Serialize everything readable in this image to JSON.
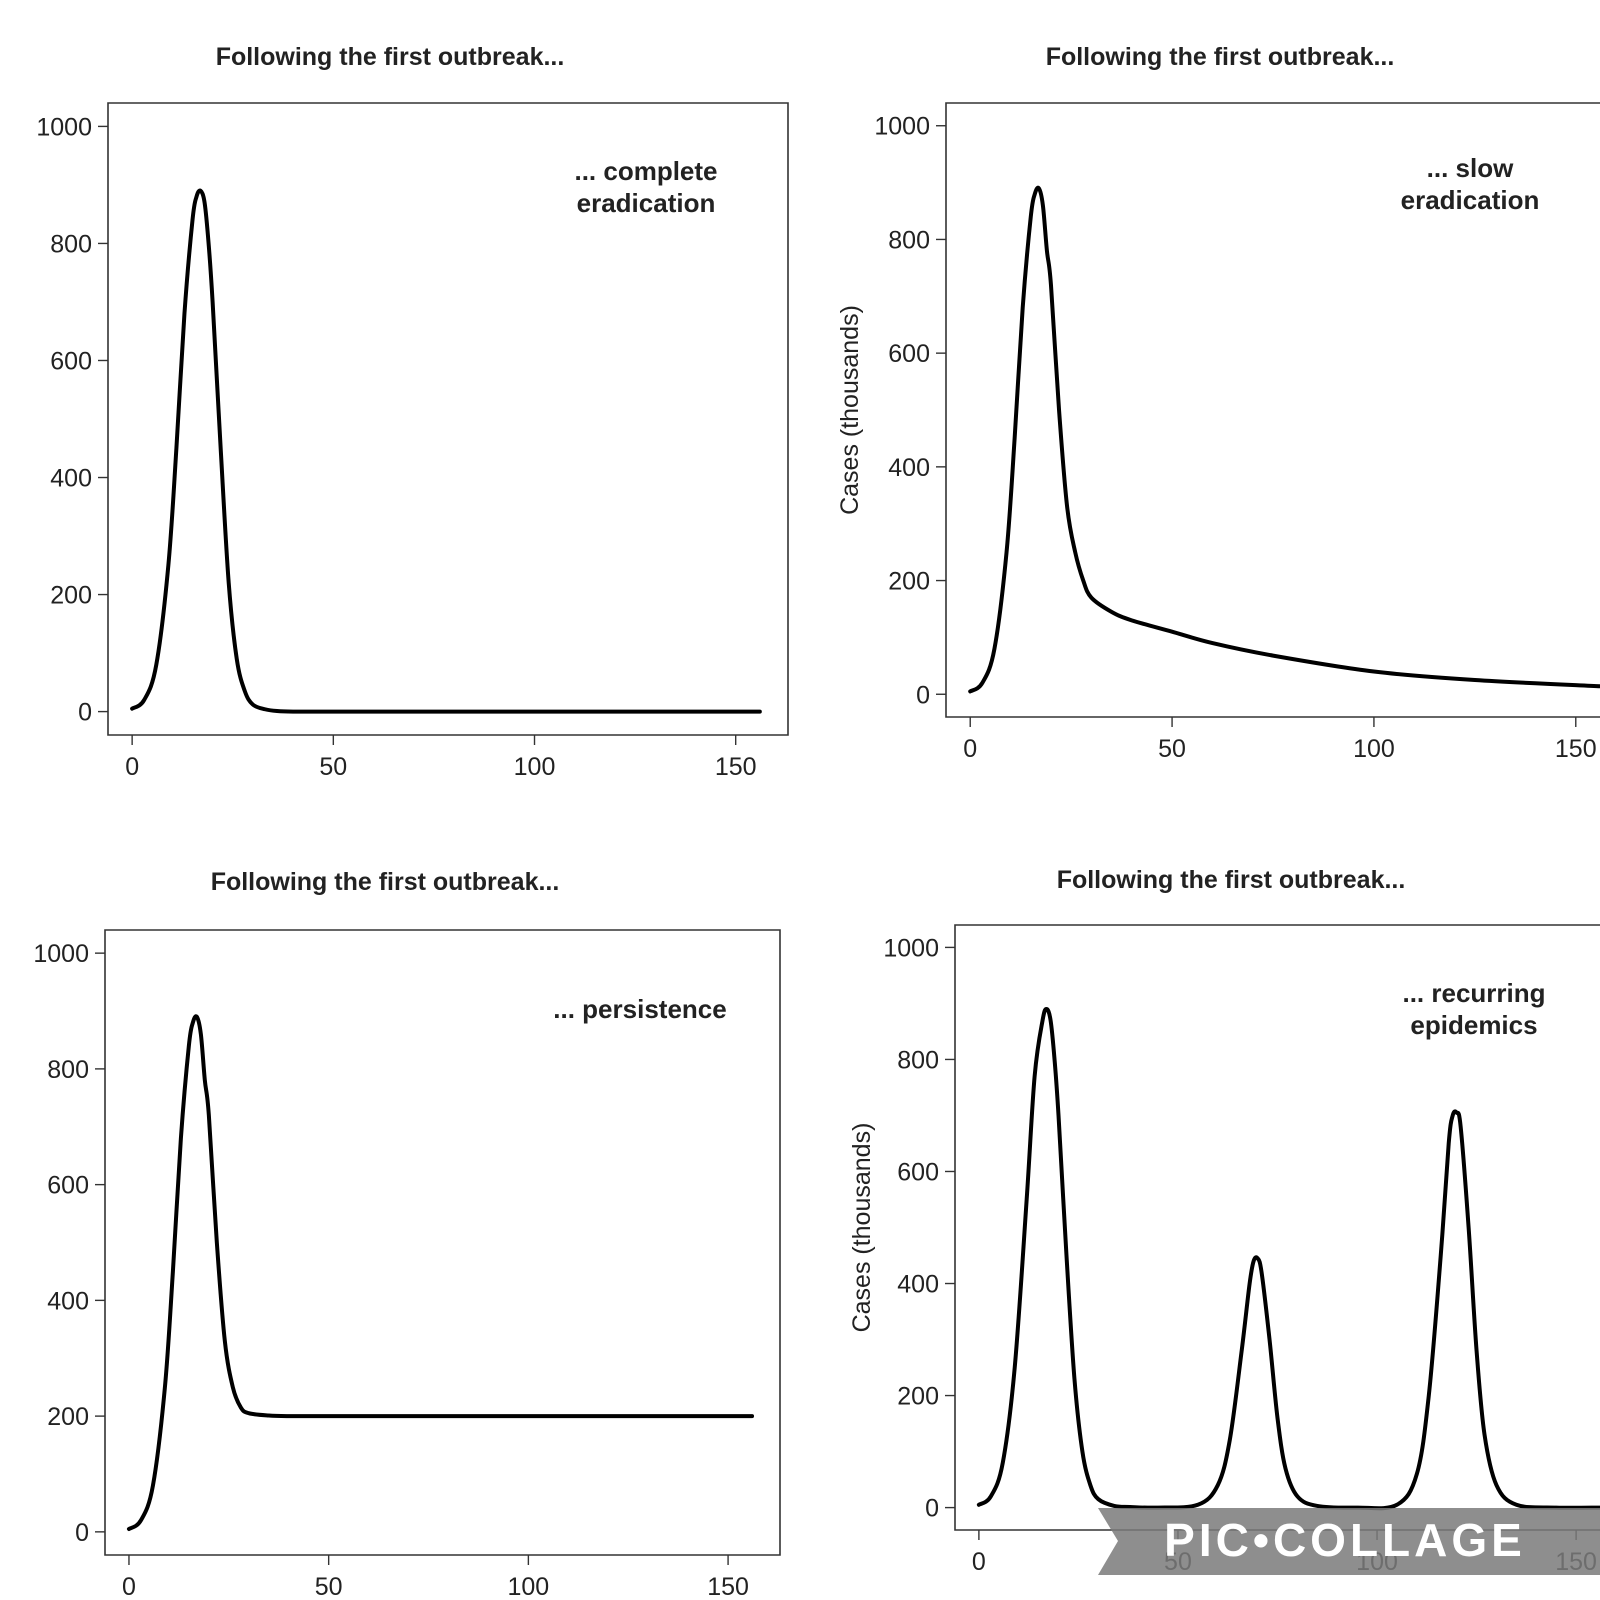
{
  "colors": {
    "line": "#000000",
    "frame": "#333333",
    "text": "#222222",
    "watermark_fill": "#7a7a7a",
    "watermark_text": "#ffffff"
  },
  "watermark": {
    "text": "PIC•COLLAGE"
  },
  "chart_data": [
    {
      "type": "line",
      "title": "Following the first outbreak...",
      "annotation": [
        "... complete",
        "eradication"
      ],
      "xlabel": "",
      "ylabel": "",
      "xlim": [
        -6,
        163
      ],
      "ylim": [
        -40,
        1040
      ],
      "xticks": [
        0,
        50,
        100,
        150
      ],
      "yticks": [
        0,
        200,
        400,
        600,
        800,
        1000
      ],
      "series": [
        {
          "x": [
            0,
            3,
            6,
            9,
            11,
            13,
            15,
            16,
            17,
            18,
            19,
            20,
            22,
            24,
            26,
            28,
            30,
            33,
            36,
            40,
            50,
            75,
            100,
            125,
            150,
            156
          ],
          "values": [
            5,
            20,
            80,
            250,
            450,
            680,
            840,
            880,
            890,
            870,
            800,
            700,
            450,
            220,
            90,
            35,
            12,
            4,
            1,
            0,
            0,
            0,
            0,
            0,
            0,
            0
          ]
        }
      ]
    },
    {
      "type": "line",
      "title": "Following the first outbreak...",
      "annotation": [
        "... slow",
        "eradication"
      ],
      "xlabel": "",
      "ylabel": "Cases (thousands)",
      "xlim": [
        -6,
        156
      ],
      "ylim": [
        -40,
        1040
      ],
      "xticks": [
        0,
        50,
        100,
        150
      ],
      "yticks": [
        0,
        200,
        400,
        600,
        800,
        1000
      ],
      "series": [
        {
          "x": [
            0,
            3,
            6,
            9,
            11,
            13,
            15,
            16,
            17,
            18,
            19,
            20,
            22,
            24,
            26,
            28,
            30,
            35,
            40,
            50,
            60,
            75,
            100,
            125,
            156
          ],
          "values": [
            5,
            20,
            80,
            250,
            450,
            680,
            840,
            880,
            890,
            860,
            780,
            720,
            500,
            330,
            250,
            200,
            170,
            145,
            130,
            110,
            90,
            68,
            40,
            25,
            14
          ]
        }
      ]
    },
    {
      "type": "line",
      "title": "Following the first outbreak...",
      "annotation": [
        "... persistence"
      ],
      "xlabel": "",
      "ylabel": "",
      "xlim": [
        -6,
        163
      ],
      "ylim": [
        -40,
        1040
      ],
      "xticks": [
        0,
        50,
        100,
        150
      ],
      "yticks": [
        0,
        200,
        400,
        600,
        800,
        1000
      ],
      "series": [
        {
          "x": [
            0,
            3,
            6,
            9,
            11,
            13,
            15,
            16,
            17,
            18,
            19,
            20,
            22,
            24,
            26,
            28,
            30,
            35,
            40,
            50,
            75,
            100,
            125,
            150,
            156
          ],
          "values": [
            5,
            20,
            80,
            250,
            450,
            680,
            840,
            880,
            890,
            860,
            780,
            720,
            500,
            330,
            250,
            215,
            205,
            201,
            200,
            200,
            200,
            200,
            200,
            200,
            200
          ]
        }
      ]
    },
    {
      "type": "line",
      "title": "Following the first outbreak...",
      "annotation": [
        "... recurring",
        "epidemics"
      ],
      "xlabel": "",
      "ylabel": "Cases (thousands)",
      "xlim": [
        -6,
        156
      ],
      "ylim": [
        -40,
        1040
      ],
      "xticks": [
        0,
        50,
        100,
        150
      ],
      "yticks": [
        0,
        200,
        400,
        600,
        800,
        1000
      ],
      "series": [
        {
          "x": [
            0,
            3,
            6,
            9,
            12,
            14,
            16,
            17,
            18,
            19,
            20,
            22,
            24,
            26,
            28,
            30,
            34,
            38,
            45,
            55,
            60,
            63,
            66,
            68,
            69,
            70,
            71,
            73,
            75,
            77,
            80,
            85,
            95,
            105,
            110,
            113,
            116,
            118,
            119,
            120,
            121,
            123,
            125,
            127,
            130,
            135,
            145,
            156
          ],
          "values": [
            5,
            20,
            80,
            250,
            550,
            770,
            870,
            890,
            870,
            800,
            700,
            450,
            230,
            100,
            40,
            15,
            3,
            1,
            0,
            5,
            40,
            120,
            280,
            400,
            440,
            445,
            420,
            300,
            160,
            70,
            20,
            3,
            0,
            5,
            60,
            200,
            450,
            650,
            700,
            705,
            680,
            500,
            280,
            130,
            40,
            5,
            0,
            0
          ]
        }
      ]
    }
  ]
}
